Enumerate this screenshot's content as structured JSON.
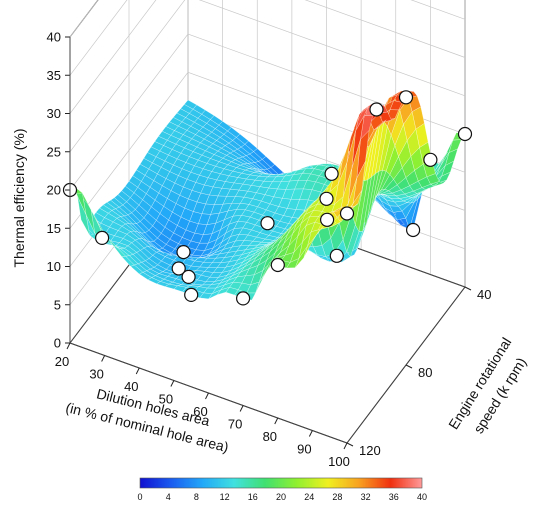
{
  "chart_data": {
    "type": "surface3d",
    "title": "",
    "x": {
      "label_line1": "Dilution holes area",
      "label_line2": "(in % of nominal hole area)",
      "range": [
        20,
        100
      ],
      "ticks": [
        20,
        30,
        40,
        50,
        60,
        70,
        80,
        90,
        100
      ]
    },
    "y": {
      "label_line1": "Engine rotational",
      "label_line2": "speed (k rpm)",
      "range": [
        40,
        120
      ],
      "ticks": [
        40,
        80,
        120
      ]
    },
    "z": {
      "label": "Thermal efficiency (%)",
      "range": [
        0,
        40
      ],
      "ticks": [
        0,
        5,
        10,
        15,
        20,
        25,
        30,
        35,
        40
      ]
    },
    "colorbar": {
      "range": [
        0,
        40
      ],
      "ticks": [
        0,
        4,
        8,
        12,
        16,
        20,
        24,
        28,
        32,
        36,
        40
      ],
      "colors": [
        "#1010d0",
        "#1a5cf0",
        "#22a8f8",
        "#40e0e0",
        "#40e070",
        "#90f030",
        "#f0f020",
        "#f8a020",
        "#f03010",
        "#ff9a9a"
      ]
    },
    "points": [
      {
        "x": 20,
        "y": 120,
        "z": 20
      },
      {
        "x": 25,
        "y": 110,
        "z": 12
      },
      {
        "x": 40,
        "y": 90,
        "z": 7.5
      },
      {
        "x": 45,
        "y": 105,
        "z": 10
      },
      {
        "x": 50,
        "y": 110,
        "z": 11
      },
      {
        "x": 55,
        "y": 120,
        "z": 12
      },
      {
        "x": 60,
        "y": 40,
        "z": 5
      },
      {
        "x": 60,
        "y": 80,
        "z": 12
      },
      {
        "x": 70,
        "y": 120,
        "z": 14
      },
      {
        "x": 70,
        "y": 60,
        "z": 15
      },
      {
        "x": 80,
        "y": 80,
        "z": 11
      },
      {
        "x": 85,
        "y": 40,
        "z": 5
      },
      {
        "x": 90,
        "y": 40,
        "z": 15
      },
      {
        "x": 100,
        "y": 40,
        "z": 20
      },
      {
        "x": 80,
        "y": 120,
        "z": 20
      },
      {
        "x": 90,
        "y": 110,
        "z": 25
      },
      {
        "x": 100,
        "y": 120,
        "z": 30
      },
      {
        "x": 100,
        "y": 80,
        "z": 35
      },
      {
        "x": 100,
        "y": 100,
        "z": 38.5
      }
    ]
  }
}
